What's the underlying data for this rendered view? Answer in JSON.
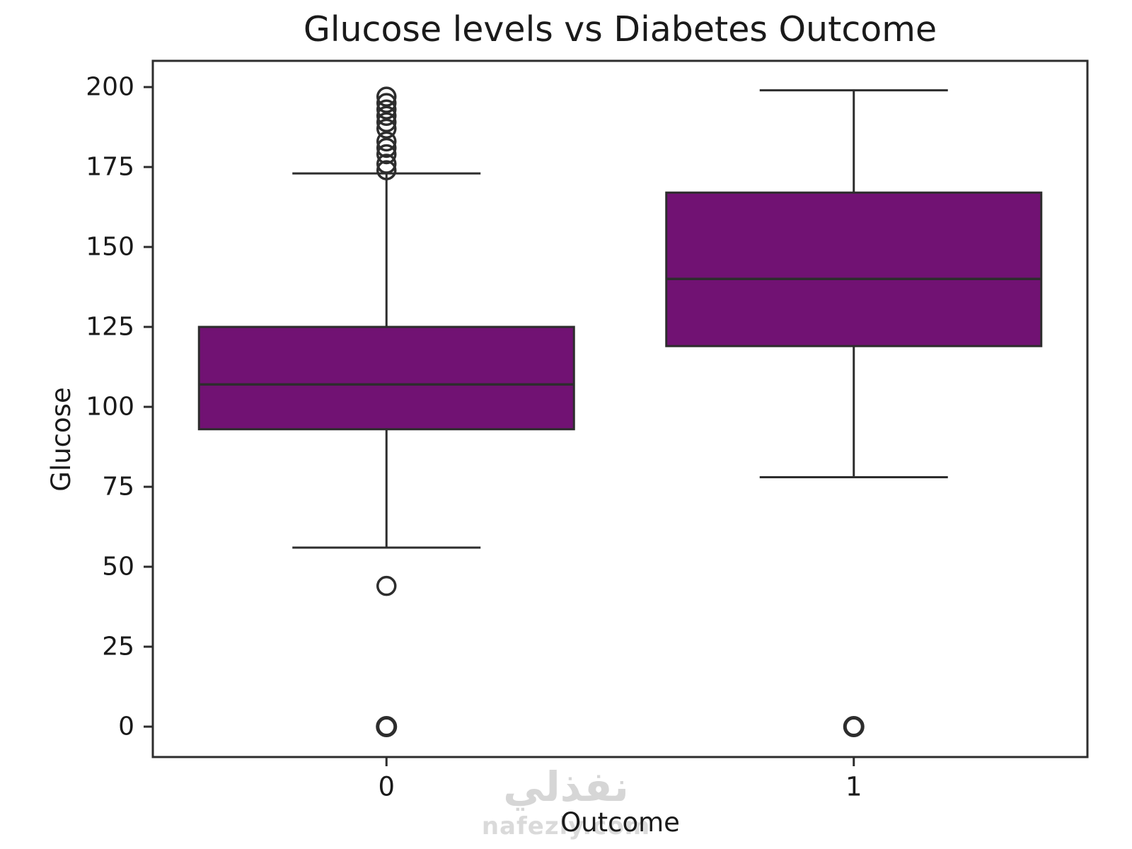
{
  "watermark": {
    "arabic": "نفذلي",
    "site": "nafezly.com"
  },
  "chart_data": {
    "type": "box",
    "title": "Glucose levels vs Diabetes Outcome",
    "xlabel": "Outcome",
    "ylabel": "Glucose",
    "categories": [
      "0",
      "1"
    ],
    "yticks": [
      0,
      25,
      50,
      75,
      100,
      125,
      150,
      175,
      200
    ],
    "ylim": [
      -9.5,
      208.2
    ],
    "grid": false,
    "legend": null,
    "series": [
      {
        "category": "0",
        "q1": 93,
        "median": 107,
        "q3": 125,
        "whisker_low": 56,
        "whisker_high": 173,
        "outliers": [
          197,
          195,
          193,
          191,
          189,
          187,
          183,
          181,
          179,
          176,
          174,
          44,
          0
        ],
        "bold_outliers": [
          0
        ]
      },
      {
        "category": "1",
        "q1": 119,
        "median": 140,
        "q3": 167,
        "whisker_low": 78,
        "whisker_high": 199,
        "outliers": [
          0
        ],
        "bold_outliers": [
          0
        ]
      }
    ],
    "colors": {
      "box_fill": "#711273",
      "line": "#2d2d2d",
      "text": "#1a1a1a",
      "watermark": "#d8d8d8",
      "background": "#ffffff"
    }
  }
}
